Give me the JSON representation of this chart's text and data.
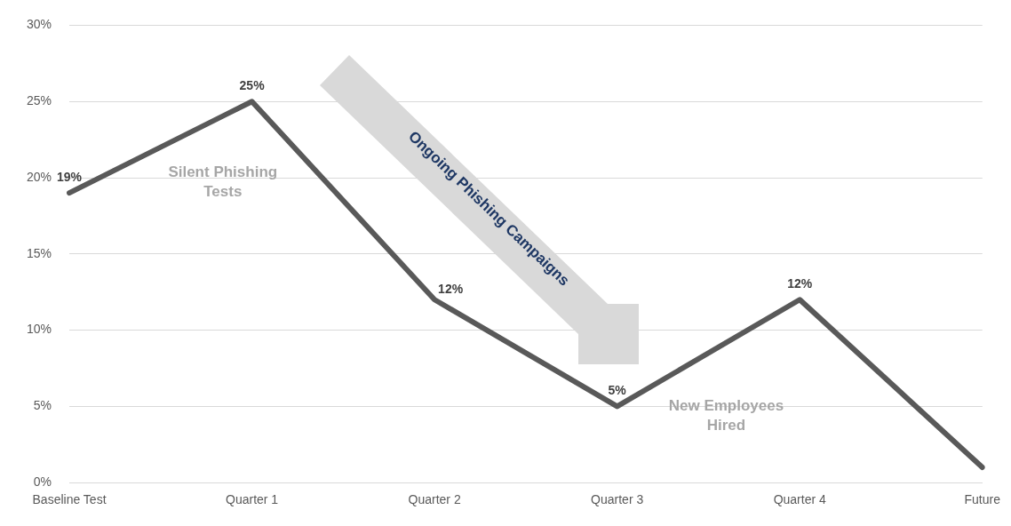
{
  "chart_data": {
    "type": "line",
    "categories": [
      "Baseline Test",
      "Quarter 1",
      "Quarter 2",
      "Quarter 3",
      "Quarter 4",
      "Future"
    ],
    "series": [
      {
        "color": "#595959",
        "values": [
          19,
          25,
          12,
          5,
          12,
          1
        ],
        "value_labels": [
          "19%",
          "25%",
          "12%",
          "5%",
          "12%",
          null
        ]
      }
    ],
    "ylim": [
      0,
      30
    ],
    "yticks": [
      {
        "value": 0,
        "label": "0%"
      },
      {
        "value": 5,
        "label": "5%"
      },
      {
        "value": 10,
        "label": "10%"
      },
      {
        "value": 15,
        "label": "15%"
      },
      {
        "value": 20,
        "label": "20%"
      },
      {
        "value": 25,
        "label": "25%"
      },
      {
        "value": 30,
        "label": "30%"
      }
    ],
    "grid": "y",
    "legend": false,
    "marker": "none",
    "line_style": "solid",
    "annotations": [
      "Silent Phishing Tests",
      "Ongoing Phishing Campaigns",
      "New Employees Hired"
    ]
  }
}
